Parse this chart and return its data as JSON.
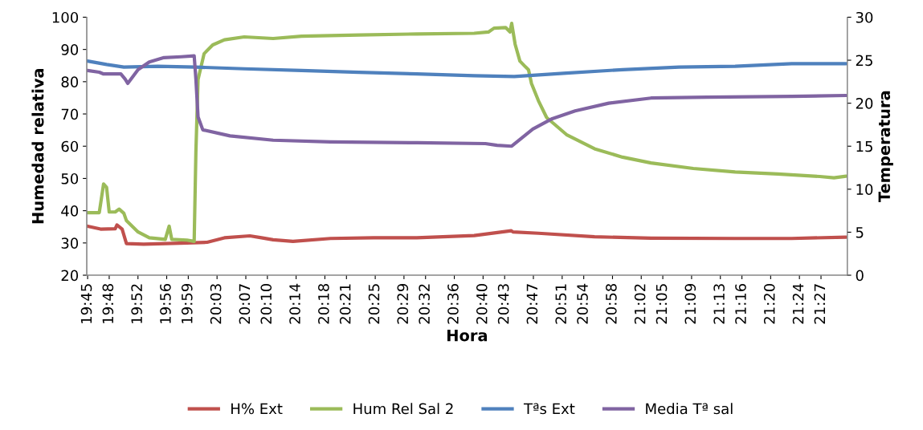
{
  "chart_data": {
    "type": "line",
    "xlabel": "Hora",
    "ylabel": "Humedad relativa",
    "y2label": "Temperatura",
    "legend": "bottom",
    "grid": false,
    "marker": "none",
    "line_style": "solid",
    "xlim": [
      19.748,
      21.511
    ],
    "xticks": [
      {
        "value": 19.75,
        "label": "19:45"
      },
      {
        "value": 19.8,
        "label": "19:48"
      },
      {
        "value": 19.8667,
        "label": "19:52"
      },
      {
        "value": 19.9333,
        "label": "19:56"
      },
      {
        "value": 19.9833,
        "label": "19:59"
      },
      {
        "value": 20.05,
        "label": "20:03"
      },
      {
        "value": 20.1167,
        "label": "20:07"
      },
      {
        "value": 20.1667,
        "label": "20:10"
      },
      {
        "value": 20.2333,
        "label": "20:14"
      },
      {
        "value": 20.3,
        "label": "20:18"
      },
      {
        "value": 20.35,
        "label": "20:21"
      },
      {
        "value": 20.4167,
        "label": "20:25"
      },
      {
        "value": 20.4833,
        "label": "20:29"
      },
      {
        "value": 20.5333,
        "label": "20:32"
      },
      {
        "value": 20.6,
        "label": "20:36"
      },
      {
        "value": 20.6667,
        "label": "20:40"
      },
      {
        "value": 20.7167,
        "label": "20:43"
      },
      {
        "value": 20.7833,
        "label": "20:47"
      },
      {
        "value": 20.85,
        "label": "20:51"
      },
      {
        "value": 20.9,
        "label": "20:54"
      },
      {
        "value": 20.9667,
        "label": "20:58"
      },
      {
        "value": 21.0333,
        "label": "21:02"
      },
      {
        "value": 21.0833,
        "label": "21:05"
      },
      {
        "value": 21.15,
        "label": "21:09"
      },
      {
        "value": 21.2167,
        "label": "21:13"
      },
      {
        "value": 21.2667,
        "label": "21:16"
      },
      {
        "value": 21.3333,
        "label": "21:20"
      },
      {
        "value": 21.4,
        "label": "21:24"
      },
      {
        "value": 21.45,
        "label": "21:27"
      }
    ],
    "ylim": [
      20,
      100
    ],
    "yticks": [
      20,
      30,
      40,
      50,
      60,
      70,
      80,
      90,
      100
    ],
    "y2lim": [
      0,
      30
    ],
    "y2ticks": [
      0,
      5,
      10,
      15,
      20,
      25,
      30
    ],
    "series": [
      {
        "name": "H% Ext",
        "color": "#c0504d",
        "x": [
          19.75,
          19.78,
          19.814,
          19.818,
          19.83,
          19.84,
          19.88,
          19.98,
          20.027,
          20.067,
          20.126,
          20.153,
          20.18,
          20.226,
          20.313,
          20.413,
          20.513,
          20.646,
          20.732,
          20.736,
          20.795,
          20.925,
          21.056,
          21.251,
          21.382,
          21.508
        ],
        "values": [
          35.2,
          34.3,
          34.4,
          35.6,
          34.3,
          29.8,
          29.6,
          30,
          30.2,
          31.6,
          32.2,
          31.6,
          31,
          30.5,
          31.4,
          31.6,
          31.6,
          32.3,
          33.8,
          33.4,
          33,
          31.9,
          31.5,
          31.4,
          31.4,
          31.8
        ]
      },
      {
        "name": "Hum Rel Sal 2",
        "color": "#9bbb59",
        "x": [
          19.75,
          19.777,
          19.787,
          19.794,
          19.8,
          19.814,
          19.823,
          19.834,
          19.84,
          19.867,
          19.893,
          19.93,
          19.939,
          19.945,
          19.98,
          19.997,
          20.001,
          20.006,
          20.02,
          20.04,
          20.067,
          20.113,
          20.18,
          20.246,
          20.379,
          20.513,
          20.646,
          20.679,
          20.692,
          20.719,
          20.729,
          20.733,
          20.741,
          20.752,
          20.765,
          20.772,
          20.779,
          20.795,
          20.814,
          20.86,
          20.925,
          20.99,
          21.056,
          21.154,
          21.251,
          21.35,
          21.447,
          21.48,
          21.508
        ],
        "values": [
          39.4,
          39.4,
          48.3,
          47.2,
          39.6,
          39.6,
          40.5,
          39.2,
          36.9,
          33.4,
          31.6,
          31.1,
          35.2,
          31.1,
          30.9,
          30.5,
          58.4,
          80.7,
          88.7,
          91.4,
          93,
          93.9,
          93.4,
          94.1,
          94.5,
          94.8,
          95,
          95.4,
          96.6,
          96.8,
          95.4,
          98.1,
          91.6,
          86.4,
          84.6,
          83.7,
          79.4,
          74.1,
          68.9,
          63.6,
          59.2,
          56.6,
          54.8,
          53.1,
          52,
          51.4,
          50.6,
          50.2,
          50.7
        ]
      },
      {
        "name": "Tªs Ext",
        "color": "#4f81bd",
        "axis": "y2",
        "x": [
          19.75,
          19.794,
          19.834,
          19.913,
          20.0,
          20.113,
          20.246,
          20.379,
          20.513,
          20.646,
          20.739,
          20.86,
          20.99,
          21.121,
          21.251,
          21.382,
          21.508
        ],
        "values": [
          24.9,
          24.5,
          24.2,
          24.3,
          24.2,
          24.0,
          23.8,
          23.6,
          23.4,
          23.2,
          23.1,
          23.5,
          23.9,
          24.2,
          24.3,
          24.6,
          24.6
        ]
      },
      {
        "name": "Media Tª sal",
        "color": "#8064a2",
        "axis": "y2",
        "x": [
          19.75,
          19.777,
          19.787,
          19.827,
          19.837,
          19.843,
          19.867,
          19.893,
          19.927,
          19.967,
          19.997,
          20.001,
          20.006,
          20.017,
          20.08,
          20.18,
          20.313,
          20.513,
          20.672,
          20.699,
          20.733,
          20.782,
          20.827,
          20.88,
          20.958,
          21.056,
          21.186,
          21.382,
          21.508
        ],
        "values": [
          23.8,
          23.6,
          23.4,
          23.4,
          22.8,
          22.3,
          23.9,
          24.8,
          25.3,
          25.4,
          25.5,
          22.8,
          18.4,
          16.9,
          16.2,
          15.7,
          15.5,
          15.4,
          15.3,
          15.1,
          15.0,
          17.0,
          18.2,
          19.1,
          20.0,
          20.6,
          20.7,
          20.8,
          20.9
        ]
      }
    ]
  }
}
